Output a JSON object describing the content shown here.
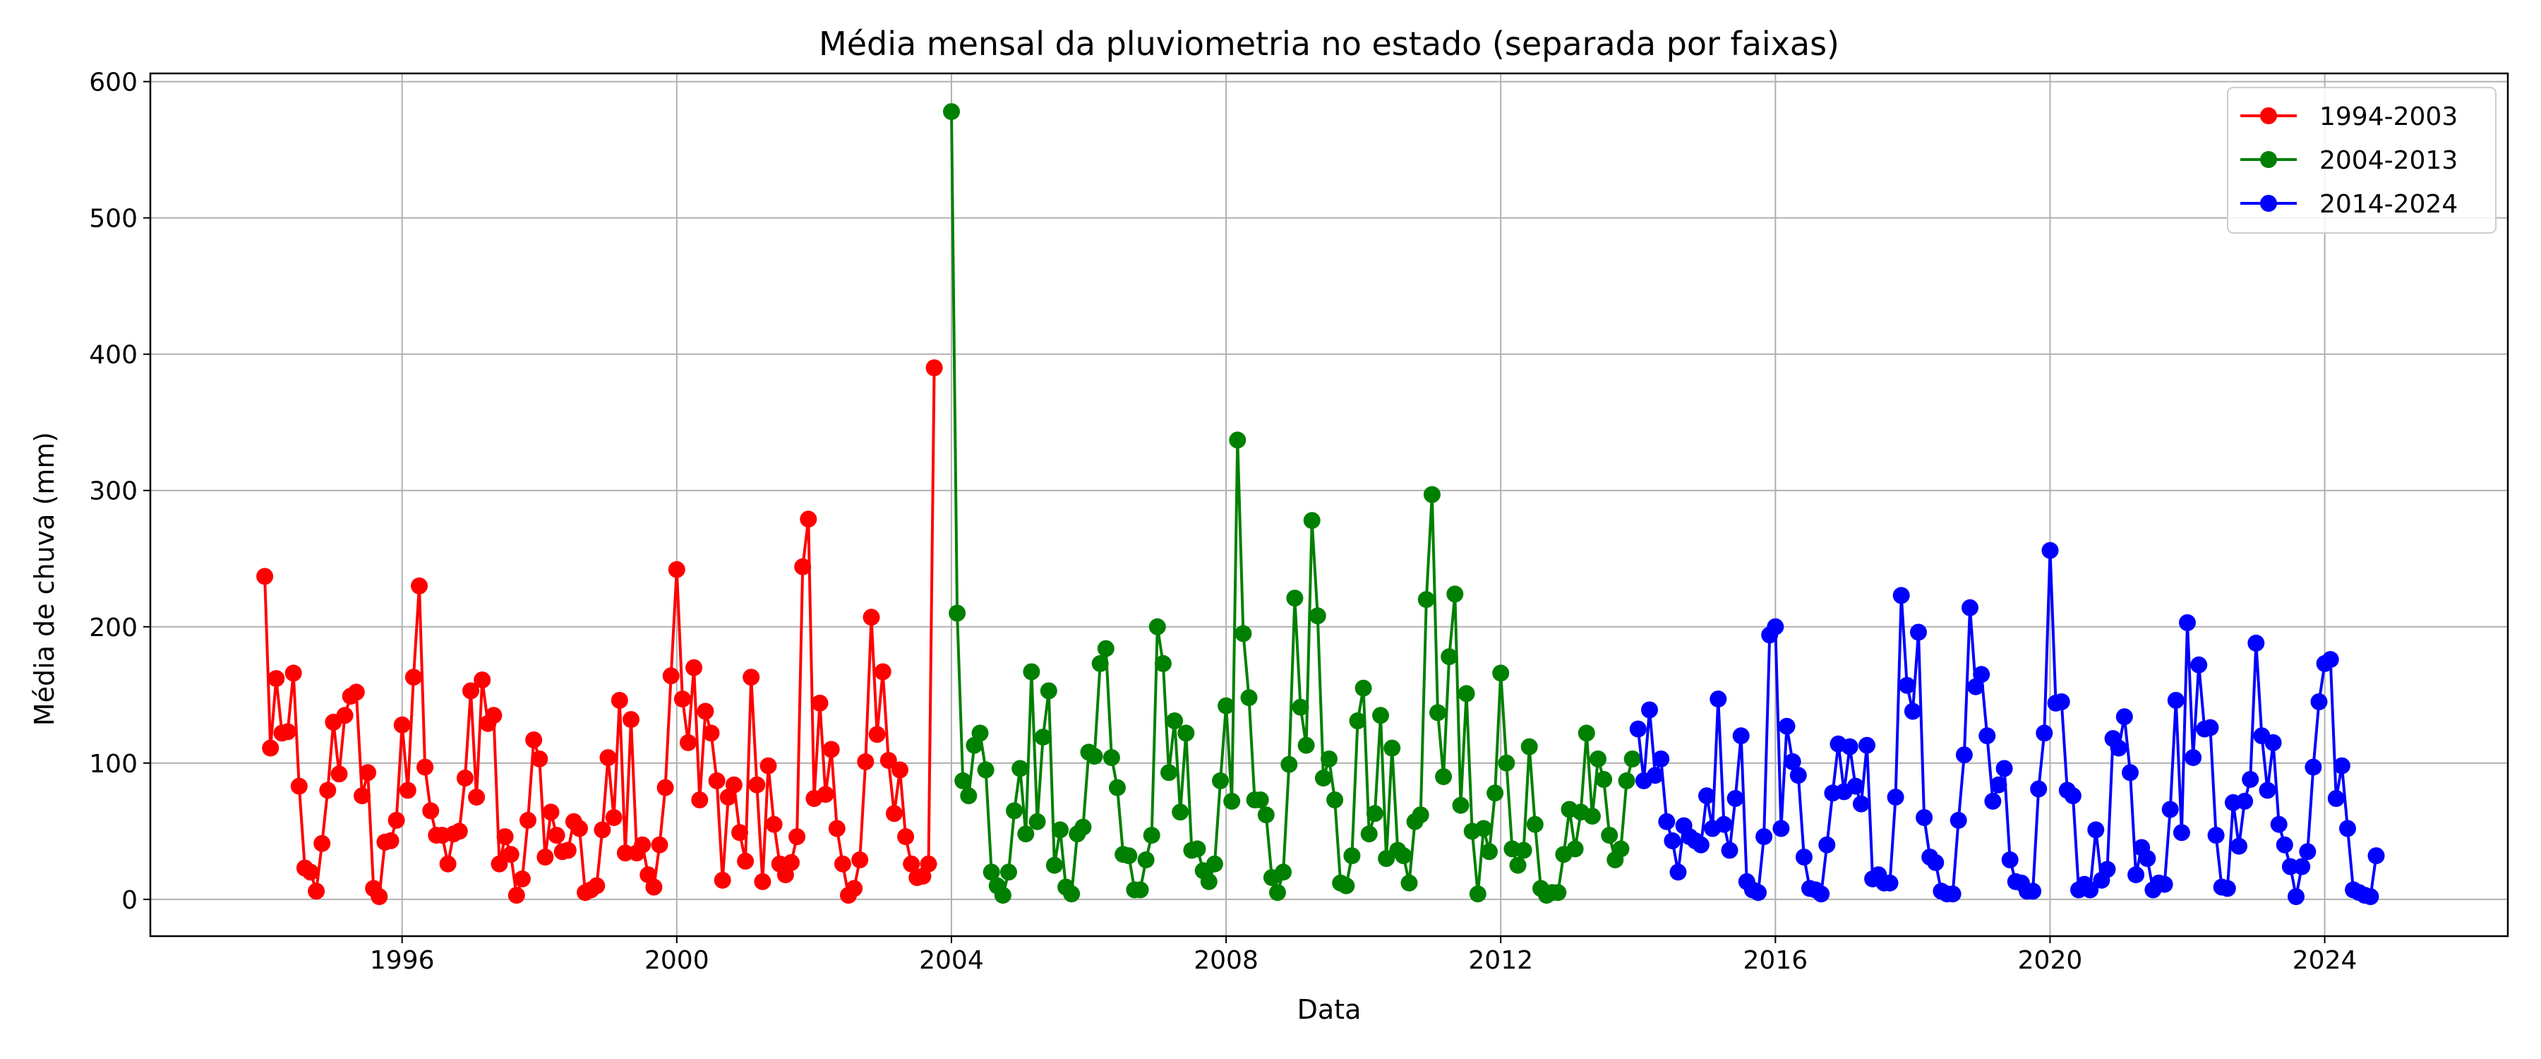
{
  "chart_data": {
    "type": "line",
    "title": "Média mensal da pluviometria no estado (separada por faixas)",
    "xlabel": "Data",
    "ylabel": "Média de chuva (mm)",
    "xlim": [
      "1992-05-01",
      "2026-09-01"
    ],
    "ylim": [
      -27,
      606
    ],
    "x_ticks": [
      "1996",
      "2000",
      "2004",
      "2008",
      "2012",
      "2016",
      "2020",
      "2024"
    ],
    "y_ticks": [
      0,
      100,
      200,
      300,
      400,
      500,
      600
    ],
    "grid": true,
    "legend_position": "top-right",
    "markers": "circle",
    "series": [
      {
        "name": "1994-2003",
        "color": "#ff0000",
        "start": "1994-01",
        "values": [
          237,
          111,
          162,
          122,
          123,
          166,
          83,
          23,
          20,
          6,
          41,
          80,
          130,
          92,
          135,
          149,
          152,
          76,
          93,
          8,
          2,
          42,
          43,
          58,
          128,
          80,
          163,
          230,
          97,
          65,
          47,
          47,
          26,
          48,
          50,
          89,
          153,
          75,
          161,
          129,
          135,
          26,
          46,
          33,
          3,
          15,
          58,
          117,
          103,
          31,
          64,
          47,
          35,
          36,
          57,
          52,
          5,
          7,
          10,
          51,
          104,
          60,
          146,
          34,
          132,
          34,
          40,
          18,
          9,
          40,
          82,
          164,
          242,
          147,
          115,
          170,
          73,
          138,
          122,
          87,
          14,
          75,
          84,
          49,
          28,
          163,
          84,
          13,
          98,
          55,
          26,
          18,
          27,
          46,
          244,
          279,
          74,
          144,
          77,
          110,
          52,
          26,
          3,
          8,
          29,
          101,
          207,
          121,
          167,
          102,
          63,
          95,
          46,
          26,
          16,
          17,
          26,
          390
        ]
      },
      {
        "name": "2004-2013",
        "color": "#008000",
        "start": "2004-01",
        "values": [
          578,
          210,
          87,
          76,
          113,
          122,
          95,
          20,
          10,
          3,
          20,
          65,
          96,
          48,
          167,
          57,
          119,
          153,
          25,
          51,
          9,
          4,
          48,
          53,
          108,
          105,
          173,
          184,
          104,
          82,
          33,
          32,
          7,
          7,
          29,
          47,
          200,
          173,
          93,
          131,
          64,
          122,
          36,
          37,
          21,
          13,
          26,
          87,
          142,
          72,
          337,
          195,
          148,
          73,
          73,
          62,
          16,
          5,
          20,
          99,
          221,
          141,
          113,
          278,
          208,
          89,
          103,
          73,
          12,
          10,
          32,
          131,
          155,
          48,
          63,
          135,
          30,
          111,
          36,
          32,
          12,
          57,
          62,
          220,
          297,
          137,
          90,
          178,
          224,
          69,
          151,
          50,
          4,
          52,
          35,
          78,
          166,
          100,
          37,
          25,
          36,
          112,
          55,
          8,
          3,
          5,
          5,
          33,
          66,
          37,
          64,
          122,
          61,
          103,
          88,
          47,
          29,
          37,
          87,
          103
        ]
      },
      {
        "name": "2014-2024",
        "color": "#0000ff",
        "start": "2014-01",
        "values": [
          125,
          87,
          139,
          91,
          103,
          57,
          43,
          20,
          54,
          46,
          43,
          40,
          76,
          52,
          147,
          55,
          36,
          74,
          120,
          13,
          7,
          5,
          46,
          194,
          200,
          52,
          127,
          101,
          91,
          31,
          8,
          7,
          4,
          40,
          78,
          114,
          79,
          112,
          83,
          70,
          113,
          15,
          18,
          12,
          12,
          75,
          223,
          157,
          138,
          196,
          60,
          31,
          27,
          6,
          4,
          4,
          58,
          106,
          214,
          156,
          165,
          120,
          72,
          84,
          96,
          29,
          13,
          12,
          6,
          6,
          81,
          122,
          256,
          144,
          145,
          80,
          76,
          7,
          11,
          7,
          51,
          14,
          22,
          118,
          111,
          134,
          93,
          18,
          38,
          30,
          7,
          12,
          11,
          66,
          146,
          49,
          203,
          104,
          172,
          125,
          126,
          47,
          9,
          8,
          71,
          39,
          72,
          88,
          188,
          120,
          80,
          115,
          55,
          40,
          24,
          2,
          24,
          35,
          97,
          145,
          173,
          176,
          74,
          98,
          52,
          7,
          5,
          3,
          2,
          32
        ]
      }
    ]
  }
}
